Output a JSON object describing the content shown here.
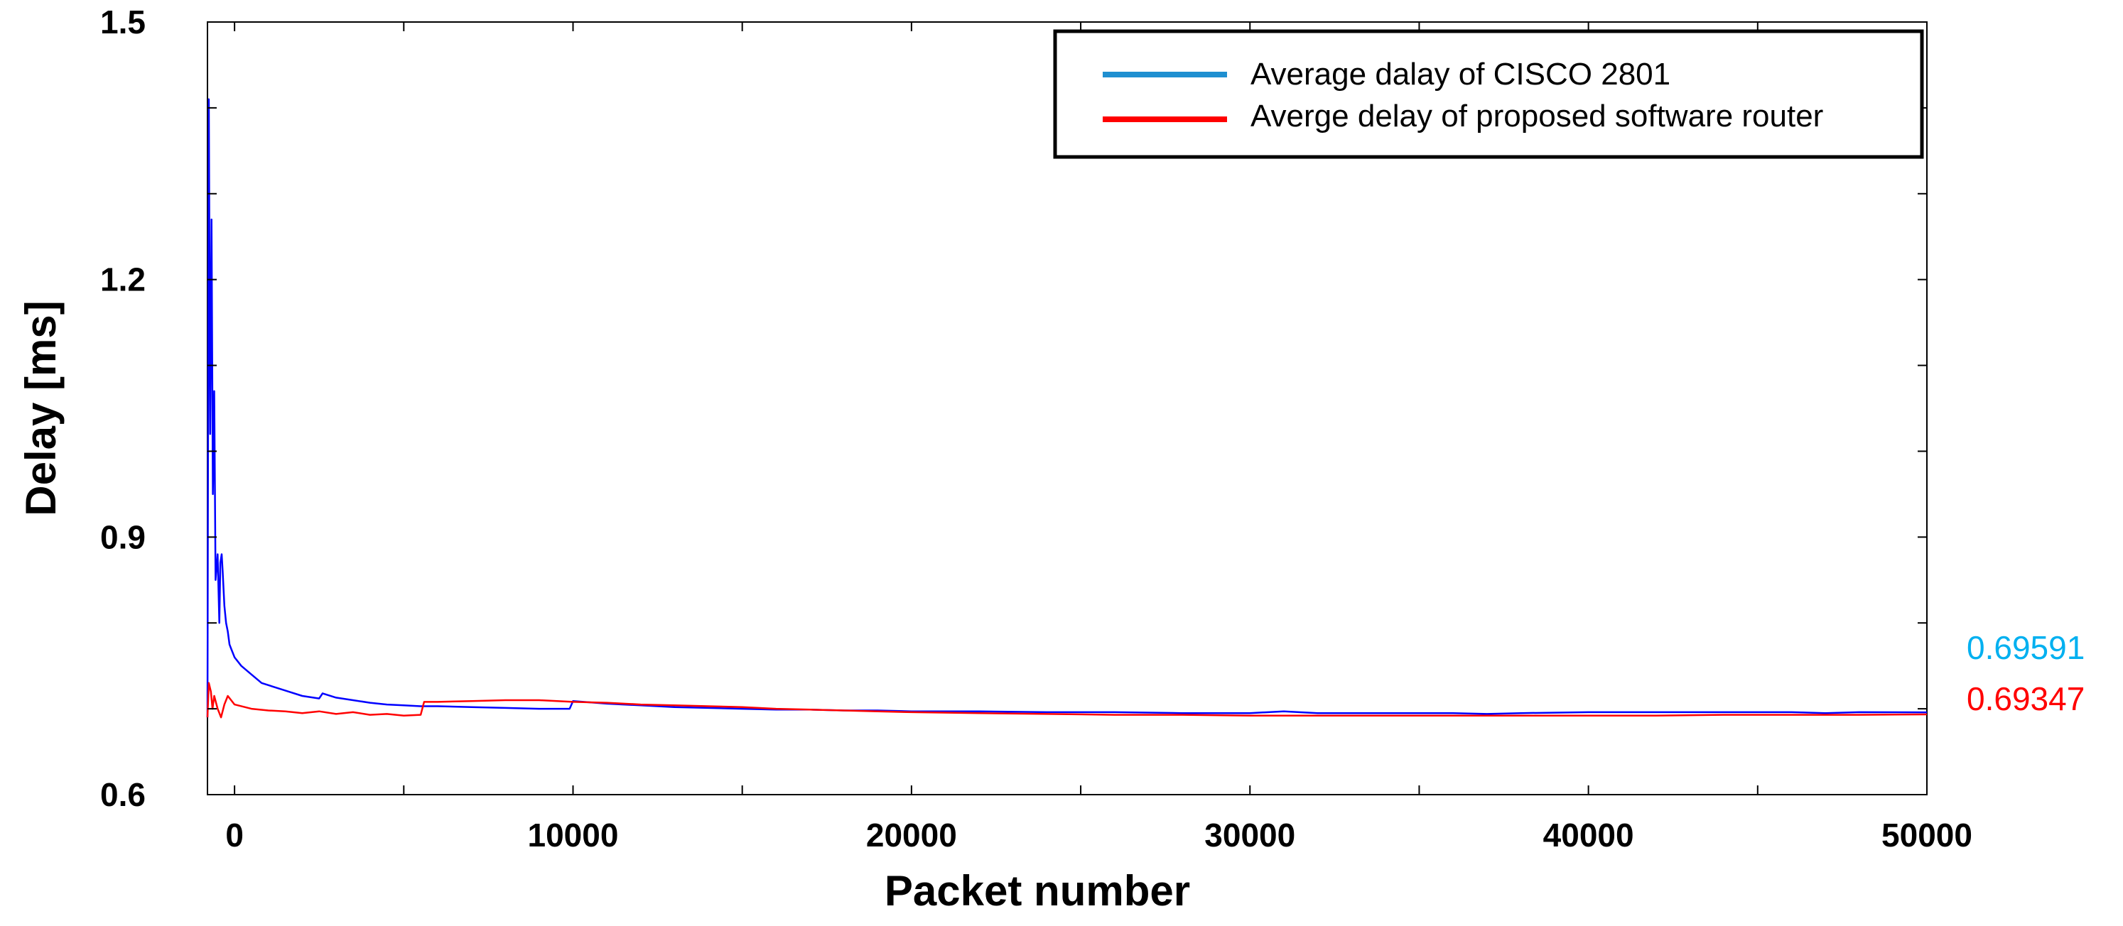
{
  "chart_data": {
    "type": "line",
    "title": "",
    "xlabel": "Packet number",
    "ylabel": "Delay [ms]",
    "xlim": [
      -800,
      50000
    ],
    "ylim": [
      0.6,
      1.5
    ],
    "xticks": [
      0,
      10000,
      20000,
      30000,
      40000,
      50000
    ],
    "xtick_labels": [
      "0",
      "10000",
      "20000",
      "30000",
      "40000",
      "50000"
    ],
    "yticks": [
      0.6,
      0.9,
      1.2,
      1.5
    ],
    "ytick_labels": [
      "0.6",
      "0.9",
      "1.2",
      "1.5"
    ],
    "grid": false,
    "legend_position": "top-right",
    "series": [
      {
        "name": "Average dalay of CISCO 2801",
        "color": "#0000ff",
        "legend_color": "#1f8fd0",
        "x": [
          -800,
          -760,
          -720,
          -680,
          -640,
          -600,
          -560,
          -500,
          -450,
          -420,
          -380,
          -350,
          -300,
          -250,
          -200,
          -150,
          -100,
          0,
          200,
          500,
          800,
          1200,
          1600,
          2000,
          2500,
          2600,
          3000,
          3500,
          4000,
          4500,
          5000,
          5500,
          6000,
          7000,
          8000,
          9000,
          9900,
          10000,
          11000,
          12000,
          13000,
          14000,
          15000,
          16000,
          17000,
          18000,
          19000,
          20000,
          22000,
          24000,
          26000,
          28000,
          30000,
          31000,
          32000,
          34000,
          36000,
          37000,
          38000,
          40000,
          42000,
          44000,
          46000,
          47000,
          48000,
          50000
        ],
        "values": [
          0.69,
          1.41,
          1.02,
          1.27,
          0.95,
          1.07,
          0.85,
          0.88,
          0.8,
          0.87,
          0.88,
          0.86,
          0.82,
          0.8,
          0.79,
          0.775,
          0.77,
          0.76,
          0.75,
          0.74,
          0.73,
          0.725,
          0.72,
          0.715,
          0.712,
          0.718,
          0.713,
          0.71,
          0.707,
          0.705,
          0.704,
          0.703,
          0.703,
          0.702,
          0.701,
          0.7,
          0.7,
          0.709,
          0.706,
          0.704,
          0.702,
          0.701,
          0.7,
          0.699,
          0.699,
          0.698,
          0.698,
          0.697,
          0.697,
          0.696,
          0.696,
          0.695,
          0.695,
          0.697,
          0.695,
          0.695,
          0.695,
          0.694,
          0.695,
          0.696,
          0.696,
          0.696,
          0.696,
          0.695,
          0.696,
          0.69591
        ],
        "end_label": "0.69591",
        "end_label_color": "#00b0f0"
      },
      {
        "name": "Averge delay of proposed software router",
        "color": "#ff0000",
        "legend_color": "#ff0000",
        "x": [
          -800,
          -760,
          -700,
          -650,
          -600,
          -500,
          -400,
          -300,
          -200,
          -100,
          0,
          500,
          1000,
          1500,
          2000,
          2500,
          3000,
          3500,
          4000,
          4500,
          5000,
          5500,
          5600,
          6000,
          7000,
          8000,
          9000,
          10000,
          11000,
          12000,
          13000,
          14000,
          15000,
          16000,
          17000,
          18000,
          19000,
          20000,
          22000,
          24000,
          26000,
          28000,
          30000,
          32000,
          34000,
          36000,
          38000,
          40000,
          42000,
          44000,
          46000,
          48000,
          50000
        ],
        "values": [
          0.69,
          0.73,
          0.72,
          0.7,
          0.715,
          0.7,
          0.69,
          0.705,
          0.715,
          0.71,
          0.705,
          0.7,
          0.698,
          0.697,
          0.695,
          0.697,
          0.694,
          0.696,
          0.693,
          0.694,
          0.692,
          0.693,
          0.708,
          0.708,
          0.709,
          0.71,
          0.71,
          0.708,
          0.707,
          0.705,
          0.704,
          0.703,
          0.702,
          0.7,
          0.699,
          0.698,
          0.697,
          0.696,
          0.695,
          0.694,
          0.693,
          0.693,
          0.692,
          0.692,
          0.692,
          0.692,
          0.692,
          0.692,
          0.692,
          0.693,
          0.693,
          0.693,
          0.69347
        ],
        "end_label": "0.69347",
        "end_label_color": "#ff0000"
      }
    ]
  }
}
